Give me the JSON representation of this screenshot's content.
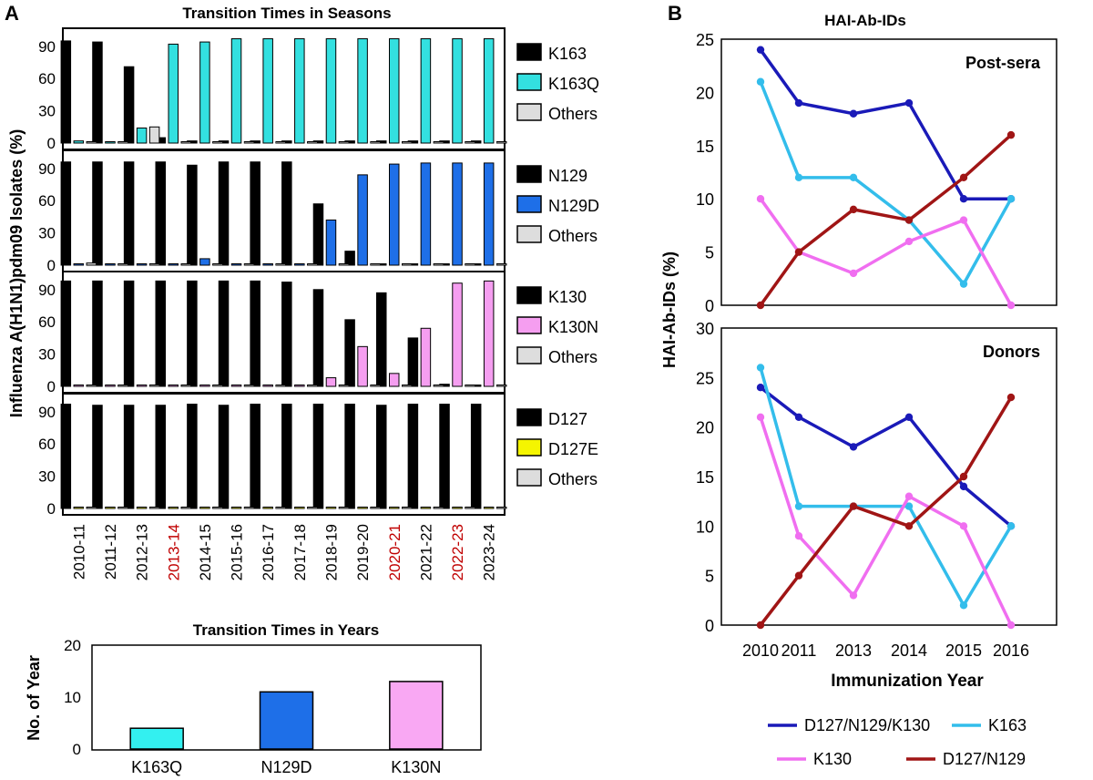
{
  "panel_a": {
    "letter": "A",
    "title": "Transition Times in Seasons",
    "ylabel": "Influenza A(H1N1)pdm09 Isolates (%)",
    "yticks": [
      "0",
      "30",
      "60",
      "90"
    ],
    "seasons": [
      "2010-11",
      "2011-12",
      "2012-13",
      "2013-14",
      "2014-15",
      "2015-16",
      "2016-17",
      "2017-18",
      "2018-19",
      "2019-20",
      "2020-21",
      "2021-22",
      "2022-23",
      "2023-24"
    ],
    "highlighted_seasons": [
      "2013-14",
      "2020-21",
      "2022-23"
    ],
    "highlight_color": "#c00000"
  },
  "panel_a_bottom": {
    "title": "Transition Times in Years",
    "ylabel": "No. of Year",
    "yticks": [
      "0",
      "10",
      "20"
    ]
  },
  "panel_b": {
    "letter": "B",
    "title": "HAI-Ab-IDs",
    "ylabel": "HAI-Ab-IDs (%)",
    "xlabel": "Immunization Year",
    "years": [
      "2010",
      "2011",
      "2013",
      "2014",
      "2015",
      "2016"
    ],
    "top_yticks": [
      "0",
      "5",
      "10",
      "15",
      "20",
      "25"
    ],
    "bottom_yticks": [
      "0",
      "5",
      "10",
      "15",
      "20",
      "25",
      "30"
    ]
  },
  "chart_data": [
    {
      "type": "bar",
      "ylim": [
        0,
        100
      ],
      "categories": [
        "2010-11",
        "2011-12",
        "2012-13",
        "2013-14",
        "2014-15",
        "2015-16",
        "2016-17",
        "2017-18",
        "2018-19",
        "2019-20",
        "2020-21",
        "2021-22",
        "2022-23",
        "2023-24"
      ],
      "series": [
        {
          "name": "K163",
          "color": "#000000",
          "values": [
            95,
            94,
            71,
            5,
            2,
            2,
            2,
            2,
            2,
            2,
            2,
            2,
            2,
            2
          ]
        },
        {
          "name": "K163Q",
          "color": "#33e0e0",
          "values": [
            2,
            1,
            14,
            92,
            94,
            97,
            97,
            97,
            97,
            97,
            97,
            97,
            97,
            97
          ]
        },
        {
          "name": "Others",
          "color": "#dddddd",
          "values": [
            1,
            1,
            15,
            1,
            1,
            1,
            1,
            1,
            1,
            1,
            1,
            1,
            1,
            1
          ]
        }
      ]
    },
    {
      "type": "bar",
      "ylim": [
        0,
        100
      ],
      "categories": [
        "2010-11",
        "2011-12",
        "2012-13",
        "2013-14",
        "2014-15",
        "2015-16",
        "2016-17",
        "2017-18",
        "2018-19",
        "2019-20",
        "2020-21",
        "2021-22",
        "2022-23",
        "2023-24"
      ],
      "series": [
        {
          "name": "N129",
          "color": "#000000",
          "values": [
            96,
            96,
            96,
            96,
            93,
            96,
            96,
            96,
            57,
            13,
            1,
            1,
            1,
            1
          ]
        },
        {
          "name": "N129D",
          "color": "#1e6fe8",
          "values": [
            1,
            1,
            1,
            1,
            6,
            1,
            1,
            1,
            42,
            84,
            94,
            95,
            95,
            95
          ]
        },
        {
          "name": "Others",
          "color": "#dddddd",
          "values": [
            2,
            1,
            1,
            1,
            1,
            1,
            1,
            1,
            1,
            1,
            1,
            1,
            1,
            1
          ]
        }
      ]
    },
    {
      "type": "bar",
      "ylim": [
        0,
        100
      ],
      "categories": [
        "2010-11",
        "2011-12",
        "2012-13",
        "2013-14",
        "2014-15",
        "2015-16",
        "2016-17",
        "2017-18",
        "2018-19",
        "2019-20",
        "2020-21",
        "2021-22",
        "2022-23",
        "2023-24"
      ],
      "series": [
        {
          "name": "K130",
          "color": "#000000",
          "values": [
            98,
            98,
            98,
            98,
            98,
            98,
            98,
            97,
            90,
            62,
            87,
            45,
            2,
            1
          ]
        },
        {
          "name": "K130N",
          "color": "#f59ef0",
          "values": [
            1,
            1,
            1,
            1,
            1,
            1,
            1,
            1,
            8,
            37,
            12,
            54,
            96,
            98
          ]
        },
        {
          "name": "Others",
          "color": "#dddddd",
          "values": [
            1,
            1,
            1,
            1,
            1,
            1,
            1,
            1,
            1,
            1,
            1,
            1,
            1,
            1
          ]
        }
      ]
    },
    {
      "type": "bar",
      "ylim": [
        0,
        100
      ],
      "categories": [
        "2010-11",
        "2011-12",
        "2012-13",
        "2013-14",
        "2014-15",
        "2015-16",
        "2016-17",
        "2017-18",
        "2018-19",
        "2019-20",
        "2020-21",
        "2021-22",
        "2022-23",
        "2023-24"
      ],
      "series": [
        {
          "name": "D127",
          "color": "#000000",
          "values": [
            97,
            96,
            96,
            96,
            97,
            96,
            97,
            97,
            97,
            97,
            96,
            97,
            97,
            97
          ]
        },
        {
          "name": "D127E",
          "color": "#f5f500",
          "values": [
            0,
            0,
            0,
            0,
            0,
            0,
            0,
            0,
            0,
            0,
            0,
            0,
            0,
            0
          ]
        },
        {
          "name": "Others",
          "color": "#dddddd",
          "values": [
            1,
            1,
            1,
            1,
            1,
            1,
            1,
            1,
            1,
            1,
            1,
            1,
            1,
            1
          ]
        }
      ]
    },
    {
      "type": "bar",
      "title": "Transition Times in Years",
      "ylabel": "No. of Year",
      "ylim": [
        0,
        20
      ],
      "categories": [
        "K163Q",
        "N129D",
        "K130N"
      ],
      "colors": [
        "#33f0f0",
        "#1e6fe8",
        "#f9a8f3"
      ],
      "values": [
        4,
        11,
        13
      ]
    },
    {
      "type": "line",
      "label": "Post-sera",
      "ylim": [
        0,
        25
      ],
      "x": [
        "2010",
        "2011",
        "2013",
        "2014",
        "2015",
        "2016"
      ],
      "series": [
        {
          "name": "D127/N129/K130",
          "color": "#1a1ab8",
          "values": [
            24,
            19,
            18,
            19,
            10,
            10
          ]
        },
        {
          "name": "K163",
          "color": "#33bdeb",
          "values": [
            21,
            12,
            12,
            8,
            2,
            10
          ]
        },
        {
          "name": "K130",
          "color": "#f06ef0",
          "values": [
            10,
            5,
            3,
            6,
            8,
            0
          ]
        },
        {
          "name": "D127/N129",
          "color": "#a01515",
          "values": [
            0,
            5,
            9,
            8,
            12,
            16
          ]
        }
      ]
    },
    {
      "type": "line",
      "label": "Donors",
      "ylim": [
        0,
        30
      ],
      "x": [
        "2010",
        "2011",
        "2013",
        "2014",
        "2015",
        "2016"
      ],
      "series": [
        {
          "name": "D127/N129/K130",
          "color": "#1a1ab8",
          "values": [
            24,
            21,
            18,
            21,
            14,
            10
          ]
        },
        {
          "name": "K163",
          "color": "#33bdeb",
          "values": [
            26,
            12,
            12,
            12,
            2,
            10
          ]
        },
        {
          "name": "K130",
          "color": "#f06ef0",
          "values": [
            21,
            9,
            3,
            13,
            10,
            0
          ]
        },
        {
          "name": "D127/N129",
          "color": "#a01515",
          "values": [
            0,
            5,
            12,
            10,
            15,
            23
          ]
        }
      ]
    }
  ]
}
